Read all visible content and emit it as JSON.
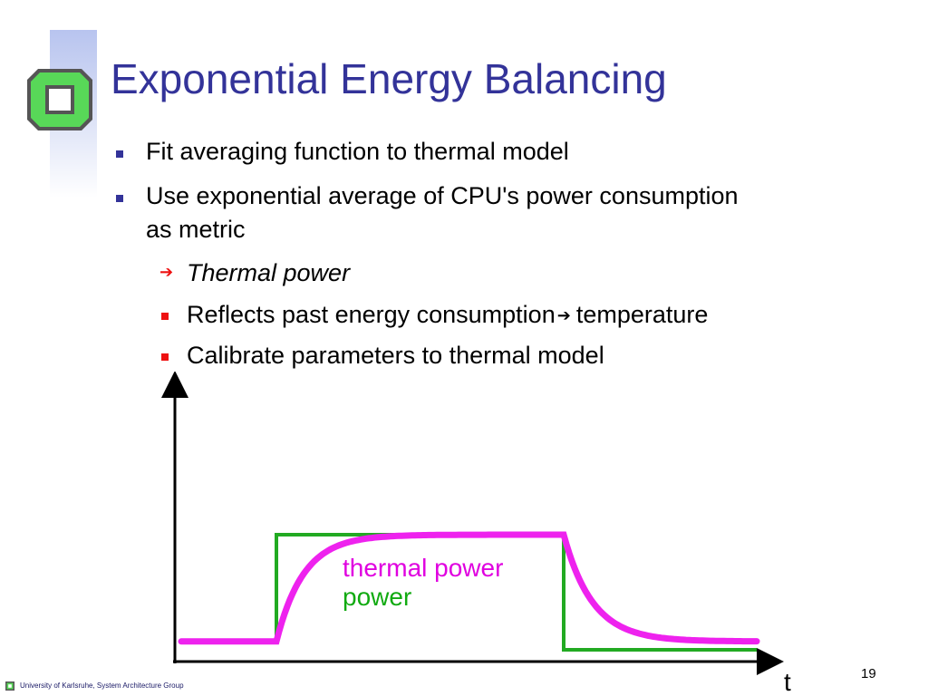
{
  "slide": {
    "title": "Exponential Energy Balancing",
    "bullets": [
      {
        "text": "Fit averaging function to thermal model"
      },
      {
        "line1": "Use exponential average of CPU's power consumption",
        "line2": "as metric"
      }
    ],
    "subbullets": [
      {
        "marker": "arrow",
        "text": "Thermal power",
        "italic": true
      },
      {
        "marker": "square",
        "text_before": "Reflects past energy consumption",
        "text_after": "temperature"
      },
      {
        "marker": "square",
        "text": "Calibrate parameters to thermal model"
      }
    ]
  },
  "chart": {
    "legend_thermal": "thermal power",
    "legend_power": "power",
    "x_axis_label": "t"
  },
  "footer": {
    "text": "University of Karlsruhe, System Architecture Group",
    "page_number": "19"
  },
  "colors": {
    "title": "#333399",
    "bullet_blue": "#333399",
    "bullet_red": "#ee1111",
    "power_line": "#22aa22",
    "thermal_line": "#ee22ee",
    "legend_thermal": "#e000e0",
    "legend_power": "#11aa11"
  },
  "chart_data": {
    "type": "line",
    "series": [
      {
        "name": "thermal power",
        "shape": "exponential approach to power level",
        "y": [
          0.05,
          0.05,
          1.0,
          1.0,
          0.05
        ]
      },
      {
        "name": "power",
        "shape": "step",
        "y": [
          0.05,
          0.05,
          1.0,
          1.0,
          0.0
        ]
      }
    ],
    "x": [
      0,
      1,
      1,
      3,
      3
    ],
    "xlabel": "t",
    "ylabel": "",
    "grid": false
  }
}
